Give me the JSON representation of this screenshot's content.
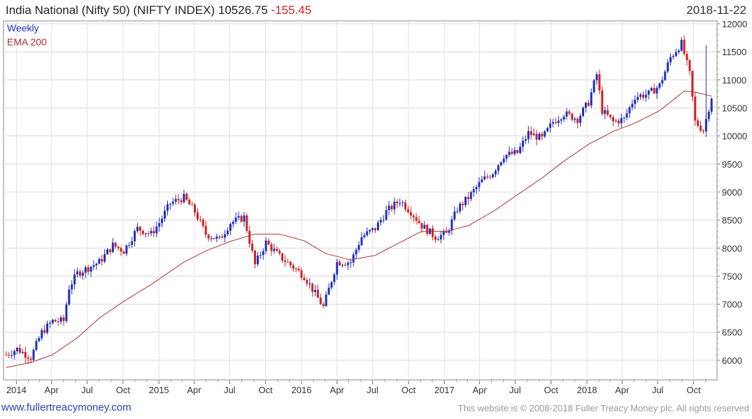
{
  "header": {
    "title": "India National (Nifty 50) (NIFTY INDEX) 10526.75",
    "change": "-155.45",
    "date": "2018-11-22"
  },
  "footer": {
    "link": "www.fullertreacymoney.com",
    "copyright": "This website is © 2008-2018 Fuller Treacy Money plc. All rights reserved"
  },
  "colors": {
    "up": "#1f2fbf",
    "down": "#d42020",
    "ema": "#b03030"
  },
  "chart_data": {
    "type": "candlestick",
    "legend": [
      "Weekly",
      "EMA 200"
    ],
    "x_ticks": [
      "2014",
      "Apr",
      "Jul",
      "Oct",
      "2015",
      "Apr",
      "Jul",
      "Oct",
      "2016",
      "Apr",
      "Jul",
      "Oct",
      "2017",
      "Apr",
      "Jul",
      "Oct",
      "2018",
      "Apr",
      "Jul",
      "Oct"
    ],
    "y_ticks": [
      6000,
      6500,
      7000,
      7500,
      8000,
      8500,
      9000,
      9500,
      10000,
      10500,
      11000,
      11500,
      12000
    ],
    "ylim": [
      5650,
      12050
    ],
    "close_points": [
      [
        "2013-12-06",
        6100
      ],
      [
        "2014-01-03",
        6200
      ],
      [
        "2014-02-07",
        6050
      ],
      [
        "2014-03-07",
        6500
      ],
      [
        "2014-04-04",
        6700
      ],
      [
        "2014-05-02",
        6700
      ],
      [
        "2014-05-16",
        7300
      ],
      [
        "2014-06-06",
        7550
      ],
      [
        "2014-07-04",
        7650
      ],
      [
        "2014-08-01",
        7750
      ],
      [
        "2014-09-05",
        8050
      ],
      [
        "2014-10-03",
        7950
      ],
      [
        "2014-11-07",
        8350
      ],
      [
        "2014-12-12",
        8250
      ],
      [
        "2015-01-02",
        8450
      ],
      [
        "2015-01-30",
        8800
      ],
      [
        "2015-03-06",
        8900
      ],
      [
        "2015-04-03",
        8650
      ],
      [
        "2015-05-01",
        8250
      ],
      [
        "2015-06-05",
        8150
      ],
      [
        "2015-07-03",
        8450
      ],
      [
        "2015-08-07",
        8550
      ],
      [
        "2015-09-04",
        7700
      ],
      [
        "2015-10-02",
        8100
      ],
      [
        "2015-11-06",
        7850
      ],
      [
        "2015-12-04",
        7700
      ],
      [
        "2016-01-08",
        7500
      ],
      [
        "2016-02-26",
        6950
      ],
      [
        "2016-04-01",
        7750
      ],
      [
        "2016-05-06",
        7750
      ],
      [
        "2016-06-03",
        8200
      ],
      [
        "2016-07-08",
        8350
      ],
      [
        "2016-08-05",
        8650
      ],
      [
        "2016-09-09",
        8850
      ],
      [
        "2016-10-07",
        8650
      ],
      [
        "2016-11-04",
        8400
      ],
      [
        "2016-12-09",
        8200
      ],
      [
        "2017-01-06",
        8250
      ],
      [
        "2017-02-03",
        8700
      ],
      [
        "2017-03-03",
        8900
      ],
      [
        "2017-04-07",
        9200
      ],
      [
        "2017-05-05",
        9350
      ],
      [
        "2017-06-02",
        9650
      ],
      [
        "2017-07-07",
        9700
      ],
      [
        "2017-08-04",
        10050
      ],
      [
        "2017-09-08",
        9950
      ],
      [
        "2017-10-06",
        10250
      ],
      [
        "2017-11-03",
        10400
      ],
      [
        "2017-12-08",
        10300
      ],
      [
        "2018-01-05",
        10600
      ],
      [
        "2018-01-26",
        11100
      ],
      [
        "2018-02-09",
        10450
      ],
      [
        "2018-03-09",
        10250
      ],
      [
        "2018-04-06",
        10300
      ],
      [
        "2018-05-04",
        10700
      ],
      [
        "2018-06-08",
        10750
      ],
      [
        "2018-07-06",
        10900
      ],
      [
        "2018-08-03",
        11400
      ],
      [
        "2018-08-31",
        11650
      ],
      [
        "2018-09-21",
        11100
      ],
      [
        "2018-10-05",
        10250
      ],
      [
        "2018-10-26",
        10100
      ],
      [
        "2018-11-16",
        10700
      ],
      [
        "2018-11-22",
        10526.75
      ]
    ],
    "ema_points": [
      [
        "2013-12-06",
        5870
      ],
      [
        "2014-02-07",
        5960
      ],
      [
        "2014-04-04",
        6100
      ],
      [
        "2014-06-06",
        6400
      ],
      [
        "2014-08-01",
        6750
      ],
      [
        "2014-10-03",
        7050
      ],
      [
        "2014-12-12",
        7350
      ],
      [
        "2015-03-06",
        7750
      ],
      [
        "2015-05-01",
        7950
      ],
      [
        "2015-07-03",
        8120
      ],
      [
        "2015-09-04",
        8250
      ],
      [
        "2015-11-06",
        8250
      ],
      [
        "2016-01-08",
        8130
      ],
      [
        "2016-03-04",
        7900
      ],
      [
        "2016-05-06",
        7790
      ],
      [
        "2016-07-08",
        7870
      ],
      [
        "2016-09-09",
        8100
      ],
      [
        "2016-11-04",
        8300
      ],
      [
        "2017-01-06",
        8300
      ],
      [
        "2017-03-03",
        8400
      ],
      [
        "2017-05-05",
        8650
      ],
      [
        "2017-07-07",
        8950
      ],
      [
        "2017-09-08",
        9250
      ],
      [
        "2017-11-03",
        9550
      ],
      [
        "2018-01-05",
        9850
      ],
      [
        "2018-03-09",
        10080
      ],
      [
        "2018-05-04",
        10230
      ],
      [
        "2018-07-06",
        10450
      ],
      [
        "2018-09-07",
        10800
      ],
      [
        "2018-10-05",
        10780
      ],
      [
        "2018-11-22",
        10700
      ]
    ]
  }
}
